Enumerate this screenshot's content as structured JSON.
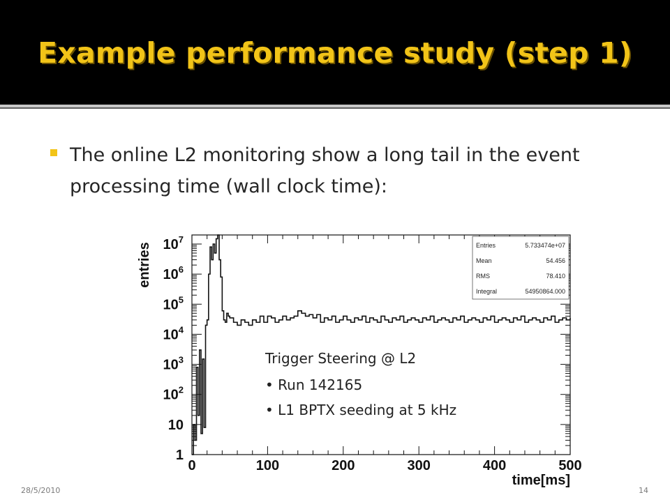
{
  "slide": {
    "title": "Example performance study (step 1)",
    "bullet_text": "The online L2 monitoring show a long tail in the event processing time (wall clock time):",
    "footer_date": "28/5/2010",
    "page_number": "14",
    "colors": {
      "title_bg": "#000000",
      "title_text": "#f2c418",
      "bullet": "#f2c418"
    }
  },
  "chart_data": {
    "type": "line",
    "xlabel": "time[ms]",
    "ylabel": "entries",
    "xlim": [
      0,
      500
    ],
    "ylim": [
      1,
      20000000
    ],
    "yscale": "log",
    "x_ticks": [
      "0",
      "100",
      "200",
      "300",
      "400",
      "500"
    ],
    "y_ticks": [
      {
        "base": "1",
        "exp": ""
      },
      {
        "base": "10",
        "exp": ""
      },
      {
        "base": "10",
        "exp": "2"
      },
      {
        "base": "10",
        "exp": "3"
      },
      {
        "base": "10",
        "exp": "4"
      },
      {
        "base": "10",
        "exp": "5"
      },
      {
        "base": "10",
        "exp": "6"
      },
      {
        "base": "10",
        "exp": "7"
      }
    ],
    "grid": false,
    "stats": [
      {
        "label": "Entries",
        "value": "5.733474e+07"
      },
      {
        "label": "Mean",
        "value": "54.456"
      },
      {
        "label": "RMS",
        "value": "78.410"
      },
      {
        "label": "Integral",
        "value": "54950864.000"
      }
    ],
    "annotation": {
      "title": "Trigger Steering @ L2",
      "items": [
        "Run 142165",
        "L1 BPTX seeding at 5 kHz"
      ]
    },
    "series": [
      {
        "x": [
          0,
          2,
          4,
          6,
          8,
          10,
          12,
          14,
          16,
          18,
          20,
          22,
          24,
          26,
          28,
          30,
          32,
          34,
          36,
          38,
          40,
          42,
          44,
          46,
          48,
          50,
          55,
          60,
          65,
          70,
          75,
          80,
          85,
          90,
          95,
          100,
          105,
          110,
          115,
          120,
          125,
          130,
          135,
          140,
          145,
          150,
          155,
          160,
          165,
          170,
          175,
          180,
          185,
          190,
          195,
          200,
          205,
          210,
          215,
          220,
          225,
          230,
          235,
          240,
          245,
          250,
          255,
          260,
          265,
          270,
          275,
          280,
          285,
          290,
          295,
          300,
          305,
          310,
          315,
          320,
          325,
          330,
          335,
          340,
          345,
          350,
          355,
          360,
          365,
          370,
          375,
          380,
          385,
          390,
          395,
          400,
          405,
          410,
          415,
          420,
          425,
          430,
          435,
          440,
          445,
          450,
          455,
          460,
          465,
          470,
          475,
          480,
          485,
          490,
          495,
          500
        ],
        "y": [
          1,
          10,
          3,
          800,
          20,
          3000,
          5,
          1500,
          8,
          20000,
          30000,
          1000000,
          8000000,
          3000000,
          10000000,
          5000000,
          15000000,
          20000000,
          3000000,
          800000,
          60000,
          30000,
          25000,
          50000,
          40000,
          35000,
          25000,
          20000,
          30000,
          25000,
          20000,
          30000,
          25000,
          40000,
          25000,
          40000,
          35000,
          25000,
          30000,
          40000,
          30000,
          35000,
          40000,
          60000,
          50000,
          40000,
          45000,
          35000,
          45000,
          25000,
          35000,
          30000,
          40000,
          25000,
          30000,
          40000,
          30000,
          25000,
          35000,
          30000,
          40000,
          25000,
          35000,
          30000,
          25000,
          40000,
          30000,
          25000,
          35000,
          30000,
          40000,
          25000,
          30000,
          35000,
          30000,
          25000,
          35000,
          30000,
          40000,
          25000,
          30000,
          35000,
          30000,
          25000,
          35000,
          30000,
          40000,
          25000,
          30000,
          35000,
          30000,
          25000,
          35000,
          30000,
          40000,
          25000,
          30000,
          35000,
          30000,
          25000,
          35000,
          30000,
          40000,
          25000,
          30000,
          35000,
          30000,
          25000,
          35000,
          30000,
          40000,
          25000,
          30000,
          35000,
          30000,
          35000
        ]
      }
    ]
  }
}
